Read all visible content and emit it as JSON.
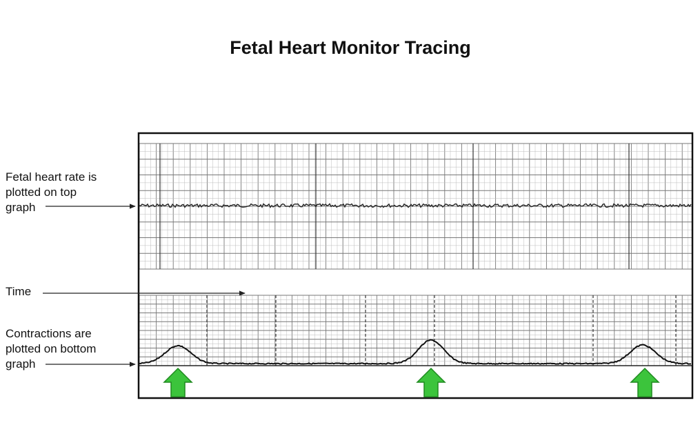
{
  "title": "Fetal Heart Monitor Tracing",
  "labels": {
    "fhr": [
      "Fetal heart rate is",
      "plotted on top",
      "graph"
    ],
    "time": [
      "Time"
    ],
    "contractions": [
      "Contractions are",
      "plotted on bottom",
      "graph"
    ]
  }
}
